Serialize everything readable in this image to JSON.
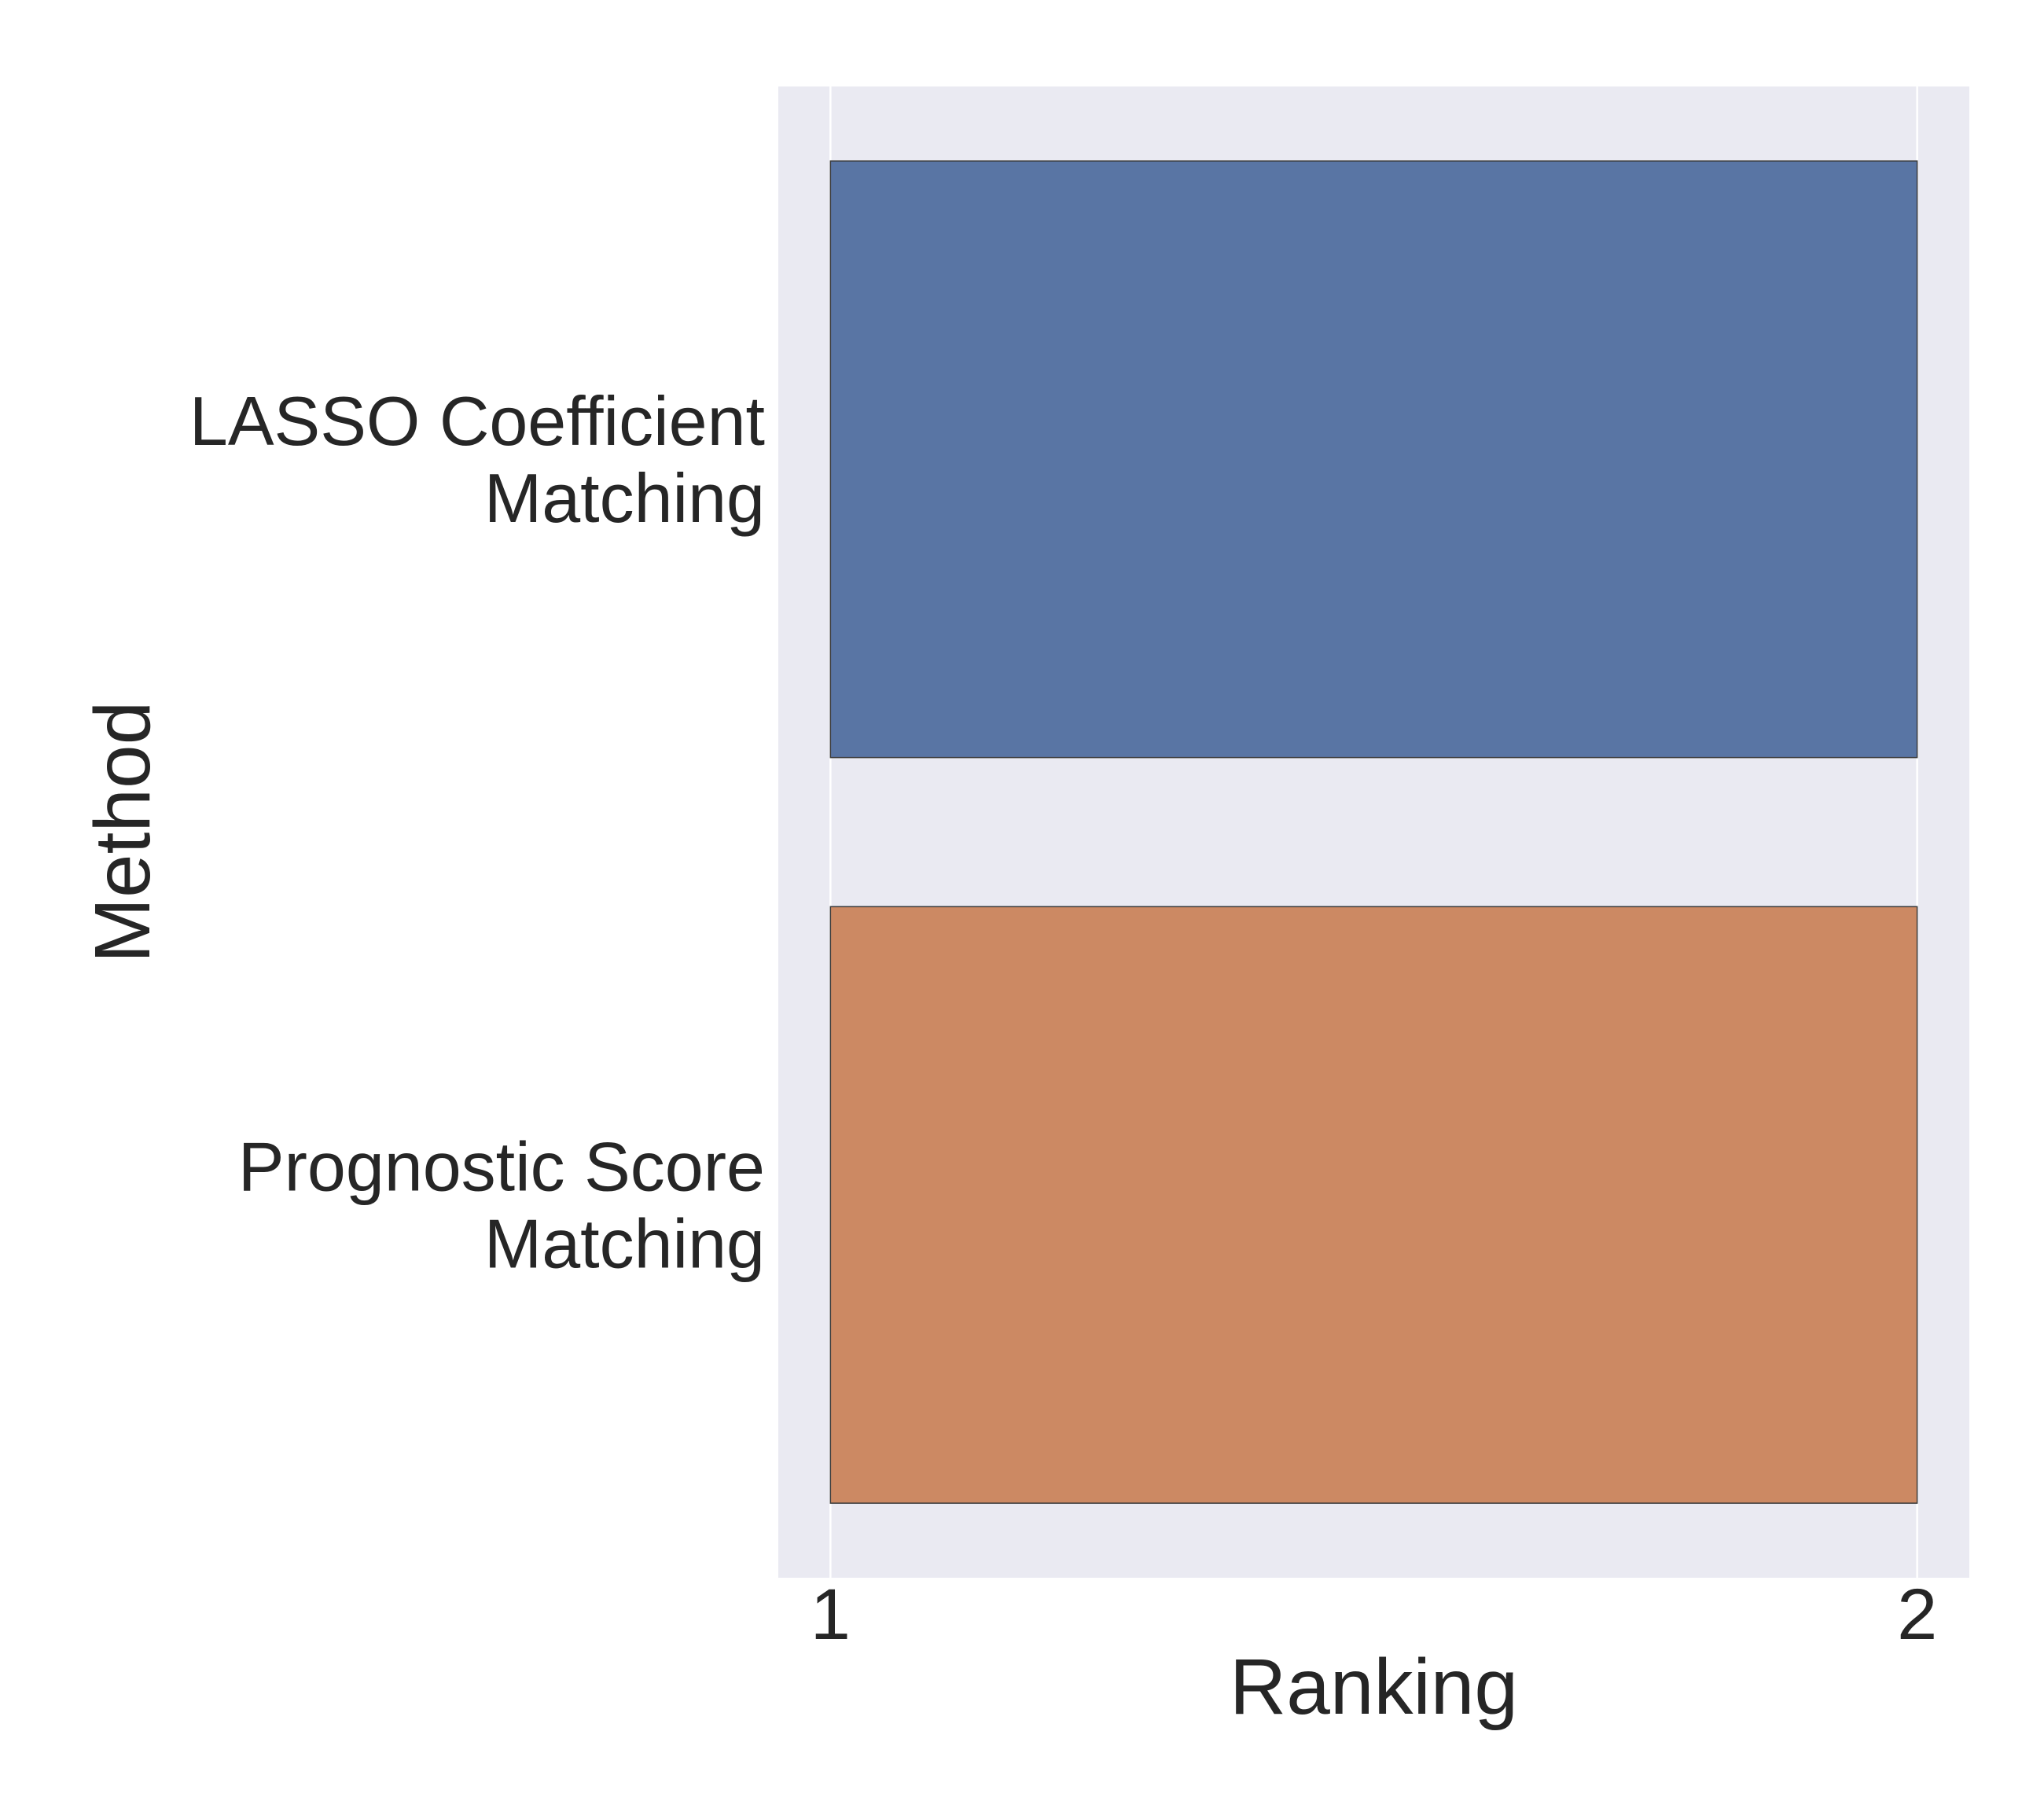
{
  "chart_data": {
    "type": "bar",
    "orientation": "horizontal",
    "title": "",
    "xlabel": "Ranking",
    "ylabel": "Method",
    "categories": [
      [
        "LASSO Coefficient",
        "Matching"
      ],
      [
        "Prognostic Score",
        "Matching"
      ]
    ],
    "bars": [
      {
        "start": 1,
        "end": 2
      },
      {
        "start": 1,
        "end": 2
      }
    ],
    "xlim": [
      0.952,
      2.048
    ],
    "xticks": [
      "1",
      "2"
    ],
    "xtick_values": [
      1,
      2
    ],
    "grid": true,
    "legend": "none",
    "colors": {
      "background": "#eaeaf2",
      "grid": "#ffffff",
      "bar_edge": "#3a3a3a",
      "bars": [
        "#5975a4",
        "#cc8963"
      ]
    }
  }
}
